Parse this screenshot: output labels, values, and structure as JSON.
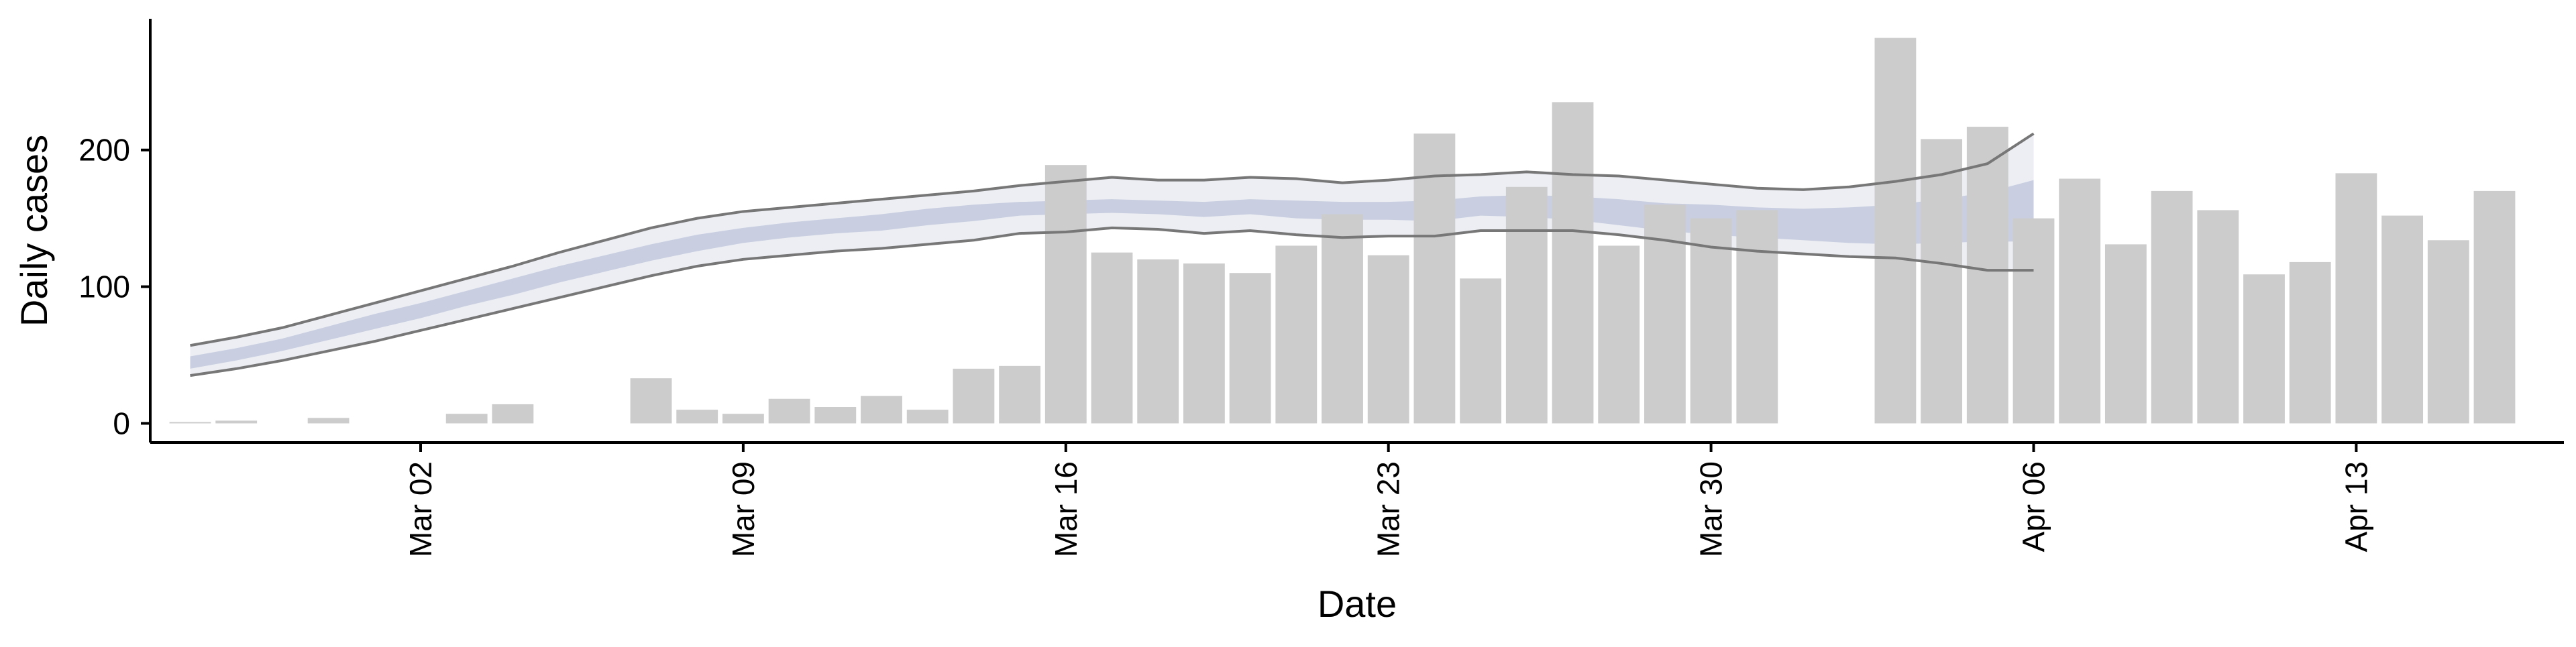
{
  "chart_data": {
    "type": "bar",
    "xlabel": "Date",
    "ylabel": "Daily cases",
    "x_ticks": [
      "Mar 02",
      "Mar 09",
      "Mar 16",
      "Mar 23",
      "Mar 30",
      "Apr 06",
      "Apr 13"
    ],
    "y_ticks": [
      "0",
      "100",
      "200"
    ],
    "ylim": [
      -14,
      296
    ],
    "grid": false,
    "legend": "none",
    "bars": {
      "name": "",
      "x": [
        "2020-02-26",
        "2020-02-27",
        "2020-02-28",
        "2020-02-29",
        "2020-03-01",
        "2020-03-02",
        "2020-03-03",
        "2020-03-04",
        "2020-03-05",
        "2020-03-06",
        "2020-03-07",
        "2020-03-08",
        "2020-03-09",
        "2020-03-10",
        "2020-03-11",
        "2020-03-12",
        "2020-03-13",
        "2020-03-14",
        "2020-03-15",
        "2020-03-16",
        "2020-03-17",
        "2020-03-18",
        "2020-03-19",
        "2020-03-20",
        "2020-03-21",
        "2020-03-22",
        "2020-03-23",
        "2020-03-24",
        "2020-03-25",
        "2020-03-26",
        "2020-03-27",
        "2020-03-28",
        "2020-03-29",
        "2020-03-30",
        "2020-03-31",
        "2020-04-01",
        "2020-04-02",
        "2020-04-03",
        "2020-04-04",
        "2020-04-05",
        "2020-04-06",
        "2020-04-07",
        "2020-04-08",
        "2020-04-09",
        "2020-04-10",
        "2020-04-11",
        "2020-04-12",
        "2020-04-13",
        "2020-04-14",
        "2020-04-15",
        "2020-04-16"
      ],
      "values": [
        1,
        2,
        0,
        4,
        0,
        0,
        7,
        14,
        0,
        0,
        33,
        10,
        7,
        18,
        12,
        20,
        10,
        40,
        42,
        189,
        125,
        120,
        117,
        110,
        130,
        153,
        123,
        212,
        106,
        173,
        235,
        130,
        160,
        150,
        156,
        0,
        0,
        282,
        208,
        217,
        150,
        179,
        131,
        170,
        156,
        109,
        118,
        183,
        152,
        134,
        170
      ],
      "color": "#cccccc"
    },
    "estimate": {
      "name": "",
      "x": [
        "2020-02-26",
        "2020-02-27",
        "2020-02-28",
        "2020-02-29",
        "2020-03-01",
        "2020-03-02",
        "2020-03-03",
        "2020-03-04",
        "2020-03-05",
        "2020-03-06",
        "2020-03-07",
        "2020-03-08",
        "2020-03-09",
        "2020-03-10",
        "2020-03-11",
        "2020-03-12",
        "2020-03-13",
        "2020-03-14",
        "2020-03-15",
        "2020-03-16",
        "2020-03-17",
        "2020-03-18",
        "2020-03-19",
        "2020-03-20",
        "2020-03-21",
        "2020-03-22",
        "2020-03-23",
        "2020-03-24",
        "2020-03-25",
        "2020-03-26",
        "2020-03-27",
        "2020-03-28",
        "2020-03-29",
        "2020-03-30",
        "2020-03-31",
        "2020-04-01",
        "2020-04-02",
        "2020-04-03",
        "2020-04-04",
        "2020-04-05",
        "2020-04-06"
      ],
      "lower_outer": [
        35,
        40,
        46,
        53,
        60,
        68,
        76,
        84,
        92,
        100,
        108,
        115,
        120,
        123,
        126,
        128,
        131,
        134,
        139,
        140,
        143,
        142,
        139,
        141,
        138,
        136,
        137,
        137,
        141,
        141,
        141,
        138,
        134,
        129,
        126,
        124,
        122,
        121,
        117,
        112,
        112
      ],
      "lower_mid": [
        40,
        46,
        53,
        61,
        69,
        77,
        86,
        94,
        103,
        111,
        119,
        126,
        132,
        136,
        139,
        141,
        145,
        148,
        152,
        153,
        154,
        153,
        151,
        153,
        150,
        149,
        149,
        148,
        152,
        151,
        149,
        145,
        141,
        138,
        136,
        134,
        132,
        131,
        132,
        133,
        133
      ],
      "median": [
        43,
        49,
        56,
        64,
        73,
        81,
        90,
        99,
        108,
        116,
        124,
        131,
        137,
        141,
        144,
        146,
        150,
        153,
        156,
        157,
        158,
        157,
        156,
        158,
        156,
        155,
        155,
        155,
        158,
        158,
        156,
        153,
        149,
        146,
        144,
        143,
        142,
        142,
        144,
        147,
        152
      ],
      "upper_mid": [
        49,
        55,
        62,
        71,
        80,
        88,
        97,
        106,
        115,
        123,
        131,
        138,
        143,
        147,
        150,
        153,
        157,
        160,
        162,
        163,
        164,
        163,
        162,
        164,
        163,
        162,
        162,
        163,
        166,
        167,
        166,
        164,
        161,
        160,
        158,
        157,
        158,
        160,
        164,
        169,
        178
      ],
      "upper_outer": [
        57,
        63,
        70,
        79,
        88,
        97,
        106,
        115,
        125,
        134,
        143,
        150,
        155,
        158,
        161,
        164,
        167,
        170,
        174,
        177,
        180,
        178,
        178,
        180,
        179,
        176,
        178,
        181,
        182,
        184,
        182,
        181,
        178,
        175,
        172,
        171,
        173,
        177,
        182,
        190,
        212
      ],
      "band_outer_color": "#e6e8f0",
      "band_inner_color": "#c3c9dc",
      "line_color": "#777777"
    }
  }
}
